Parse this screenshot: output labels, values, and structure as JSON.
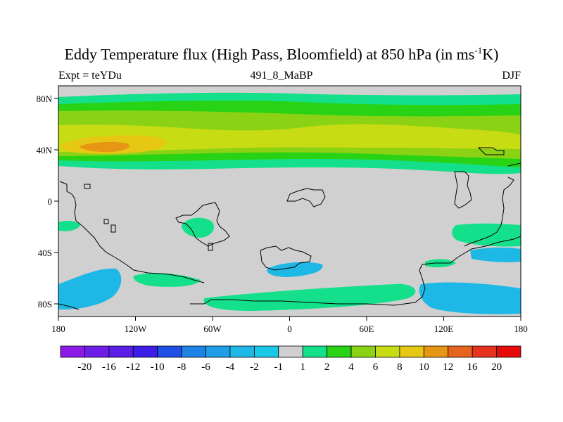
{
  "title": {
    "main": "Eddy Temperature flux (High Pass, Bloomfield) at 850 hPa (in ms",
    "exp": "-1",
    "unit_end": "K)"
  },
  "subtitle_left": "Expt = teYDu",
  "subtitle_center": "491_8_MaBP",
  "subtitle_right": "DJF",
  "lat_labels": [
    "80N",
    "40N",
    "0",
    "40S",
    "80S"
  ],
  "lon_labels": [
    "180",
    "120W",
    "60W",
    "0",
    "60E",
    "120E",
    "180"
  ],
  "colorbar": {
    "labels": [
      "-20",
      "-16",
      "-12",
      "-10",
      "-8",
      "-6",
      "-4",
      "-2",
      "-1",
      "1",
      "2",
      "4",
      "6",
      "8",
      "10",
      "12",
      "16",
      "20"
    ],
    "colors": [
      "#8c1ae6",
      "#6e1ee6",
      "#5a1ee6",
      "#3c1ee6",
      "#1e50e6",
      "#1e82e6",
      "#1e9ee6",
      "#1eb8e6",
      "#18c8e6",
      "#d0d0d0",
      "#14e08c",
      "#28d214",
      "#8cd214",
      "#c8dc14",
      "#e6c814",
      "#e69614",
      "#e6641e",
      "#e6321e",
      "#e60a0a"
    ]
  }
}
